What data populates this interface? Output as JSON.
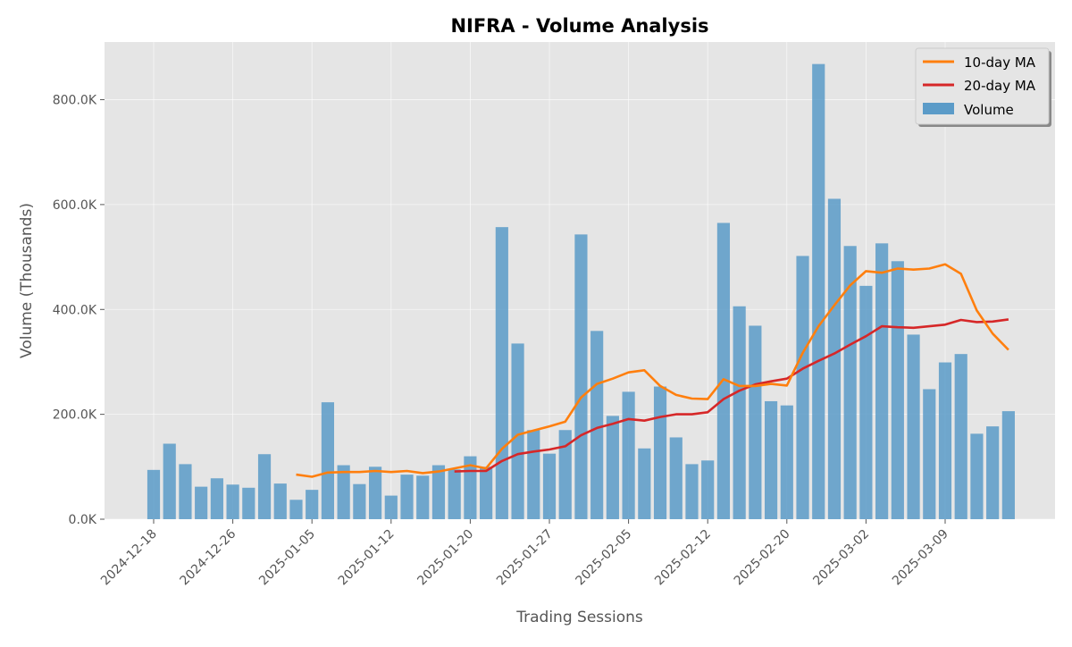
{
  "chart_data": {
    "type": "bar",
    "title": "NIFRA - Volume Analysis",
    "xlabel": "Trading Sessions",
    "ylabel": "Volume (Thousands)",
    "ylim": [
      0,
      910000
    ],
    "grid": true,
    "legend_position": "top-right",
    "x_tick_labels": [
      "2024-12-18",
      "2024-12-26",
      "2025-01-05",
      "2025-01-12",
      "2025-01-20",
      "2025-01-27",
      "2025-02-05",
      "2025-02-12",
      "2025-02-20",
      "2025-03-02",
      "2025-03-09"
    ],
    "x_tick_positions": [
      0,
      5,
      10,
      15,
      20,
      25,
      30,
      35,
      40,
      45,
      50
    ],
    "y_ticks": [
      0,
      200000,
      400000,
      600000,
      800000
    ],
    "y_tick_labels": [
      "0.0K",
      "200.0K",
      "400.0K",
      "600.0K",
      "800.0K"
    ],
    "series": [
      {
        "name": "Volume",
        "kind": "bar",
        "color": "#5b9bc8",
        "values": [
          94000,
          144000,
          105000,
          62000,
          78000,
          66000,
          60000,
          124000,
          68000,
          37000,
          56000,
          223000,
          103000,
          67000,
          100000,
          45000,
          85000,
          83000,
          103000,
          95000,
          120000,
          100000,
          557000,
          335000,
          170000,
          125000,
          170000,
          543000,
          359000,
          197000,
          243000,
          135000,
          253000,
          156000,
          105000,
          112000,
          565000,
          406000,
          369000,
          225000,
          217000,
          502000,
          868000,
          611000,
          521000,
          445000,
          526000,
          492000,
          352000,
          248000,
          299000,
          315000,
          163000,
          177000,
          206000
        ]
      },
      {
        "name": "10-day MA",
        "kind": "line",
        "color": "#ff7f0e",
        "values": [
          null,
          null,
          null,
          null,
          null,
          null,
          null,
          null,
          null,
          85000,
          81000,
          89000,
          90000,
          90000,
          92000,
          90000,
          92000,
          88000,
          91000,
          97000,
          103000,
          97000,
          134000,
          161000,
          169000,
          177000,
          186000,
          232000,
          258000,
          268000,
          280000,
          284000,
          254000,
          237000,
          230000,
          229000,
          267000,
          254000,
          254000,
          258000,
          255000,
          317000,
          368000,
          408000,
          446000,
          473000,
          470000,
          478000,
          476000,
          478000,
          486000,
          468000,
          398000,
          354000,
          323000
        ]
      },
      {
        "name": "20-day MA",
        "kind": "line",
        "color": "#d62728",
        "values": [
          null,
          null,
          null,
          null,
          null,
          null,
          null,
          null,
          null,
          null,
          null,
          null,
          null,
          null,
          null,
          null,
          null,
          null,
          null,
          91000,
          92000,
          92000,
          111000,
          124000,
          129000,
          133000,
          139000,
          160000,
          174000,
          182000,
          191000,
          188000,
          195000,
          200000,
          200000,
          204000,
          229000,
          245000,
          257000,
          263000,
          268000,
          287000,
          302000,
          316000,
          333000,
          349000,
          368000,
          366000,
          365000,
          368000,
          371000,
          380000,
          376000,
          377000,
          381000
        ]
      }
    ],
    "legend": [
      "10-day MA",
      "20-day MA",
      "Volume"
    ]
  }
}
